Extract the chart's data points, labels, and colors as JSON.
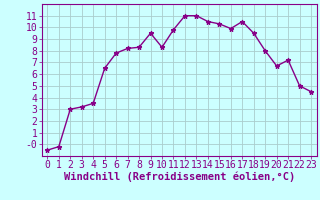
{
  "x": [
    0,
    1,
    2,
    3,
    4,
    5,
    6,
    7,
    8,
    9,
    10,
    11,
    12,
    13,
    14,
    15,
    16,
    17,
    18,
    19,
    20,
    21,
    22,
    23
  ],
  "y": [
    -0.5,
    -0.2,
    3.0,
    3.2,
    3.5,
    6.5,
    7.8,
    8.2,
    8.3,
    9.5,
    8.3,
    9.8,
    11.0,
    11.0,
    10.5,
    10.3,
    9.9,
    10.5,
    9.5,
    8.0,
    6.7,
    7.2,
    5.0,
    4.5
  ],
  "line_color": "#880088",
  "marker": "*",
  "marker_size": 3.5,
  "background_color": "#ccffff",
  "grid_color": "#aacccc",
  "xlabel": "Windchill (Refroidissement éolien,°C)",
  "xlim_min": -0.5,
  "xlim_max": 23.5,
  "ylim_min": -1.0,
  "ylim_max": 12.0,
  "xticks": [
    0,
    1,
    2,
    3,
    4,
    5,
    6,
    7,
    8,
    9,
    10,
    11,
    12,
    13,
    14,
    15,
    16,
    17,
    18,
    19,
    20,
    21,
    22,
    23
  ],
  "yticks": [
    0,
    1,
    2,
    3,
    4,
    5,
    6,
    7,
    8,
    9,
    10,
    11
  ],
  "ytick_labels": [
    "-0",
    "1",
    "2",
    "3",
    "4",
    "5",
    "6",
    "7",
    "8",
    "9",
    "10",
    "11"
  ],
  "tick_color": "#880088",
  "xlabel_color": "#880088",
  "spine_color": "#880088",
  "xlabel_fontsize": 7.5,
  "tick_fontsize": 7,
  "linewidth": 1.0
}
